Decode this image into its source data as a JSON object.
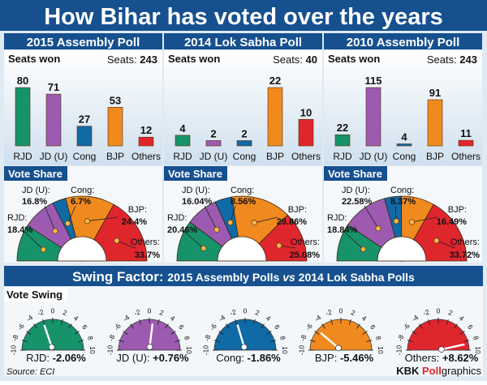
{
  "title": "How Bihar has voted over the years",
  "colors": {
    "navy": "#16508f",
    "RJD": "#17936b",
    "JDU": "#9c5bb1",
    "Cong": "#0f6aa6",
    "BJP": "#f08a1e",
    "Others": "#e0262d"
  },
  "polls": [
    {
      "title": "2015 Assembly Poll",
      "seats_label": "Seats won",
      "seats_total_label": "Seats:",
      "seats_total": "243",
      "vote_share_label": "Vote Share",
      "bars": [
        {
          "party": "RJD",
          "label": "RJD",
          "value": 80
        },
        {
          "party": "JDU",
          "label": "JD (U)",
          "value": 71
        },
        {
          "party": "Cong",
          "label": "Cong",
          "value": 27
        },
        {
          "party": "BJP",
          "label": "BJP",
          "value": 53
        },
        {
          "party": "Others",
          "label": "Others",
          "value": 12
        }
      ],
      "shares": [
        {
          "party": "RJD",
          "label": "RJD:",
          "value": 18.4,
          "text": "18.4%"
        },
        {
          "party": "JDU",
          "label": "JD (U):",
          "value": 16.8,
          "text": "16.8%"
        },
        {
          "party": "Cong",
          "label": "Cong:",
          "value": 6.7,
          "text": "6.7%"
        },
        {
          "party": "BJP",
          "label": "BJP:",
          "value": 24.4,
          "text": "24.4%"
        },
        {
          "party": "Others",
          "label": "Others:",
          "value": 33.7,
          "text": "33.7%"
        }
      ]
    },
    {
      "title": "2014 Lok Sabha Poll",
      "seats_label": "Seats won",
      "seats_total_label": "Seats:",
      "seats_total": "40",
      "vote_share_label": "Vote Share",
      "bars": [
        {
          "party": "RJD",
          "label": "RJD",
          "value": 4
        },
        {
          "party": "JDU",
          "label": "JD (U)",
          "value": 2
        },
        {
          "party": "Cong",
          "label": "Cong",
          "value": 2
        },
        {
          "party": "BJP",
          "label": "BJP",
          "value": 22
        },
        {
          "party": "Others",
          "label": "Others",
          "value": 10
        }
      ],
      "shares": [
        {
          "party": "RJD",
          "label": "RJD:",
          "value": 20.46,
          "text": "20.46%"
        },
        {
          "party": "JDU",
          "label": "JD (U):",
          "value": 16.04,
          "text": "16.04%"
        },
        {
          "party": "Cong",
          "label": "Cong:",
          "value": 8.56,
          "text": "8.56%"
        },
        {
          "party": "BJP",
          "label": "BJP:",
          "value": 29.86,
          "text": "29.86%"
        },
        {
          "party": "Others",
          "label": "Others:",
          "value": 25.08,
          "text": "25.08%"
        }
      ]
    },
    {
      "title": "2010 Assembly Poll",
      "seats_label": "Seats won",
      "seats_total_label": "Seats:",
      "seats_total": "243",
      "vote_share_label": "Vote Share",
      "bars": [
        {
          "party": "RJD",
          "label": "RJD",
          "value": 22
        },
        {
          "party": "JDU",
          "label": "JD (U)",
          "value": 115
        },
        {
          "party": "Cong",
          "label": "Cong",
          "value": 4
        },
        {
          "party": "BJP",
          "label": "BJP",
          "value": 91
        },
        {
          "party": "Others",
          "label": "Others",
          "value": 11
        }
      ],
      "shares": [
        {
          "party": "RJD",
          "label": "RJD:",
          "value": 18.84,
          "text": "18.84%"
        },
        {
          "party": "JDU",
          "label": "JD (U):",
          "value": 22.58,
          "text": "22.58%"
        },
        {
          "party": "Cong",
          "label": "Cong:",
          "value": 8.37,
          "text": "8.37%"
        },
        {
          "party": "BJP",
          "label": "BJP:",
          "value": 16.49,
          "text": "16.49%"
        },
        {
          "party": "Others",
          "label": "Others:",
          "value": 33.72,
          "text": "33.72%"
        }
      ]
    }
  ],
  "swing": {
    "title_bold": "Swing Factor:",
    "title_rest_a": "2015 Assembly Polls",
    "title_vs": "vs",
    "title_rest_b": "2014 Lok Sabha Polls",
    "subtitle": "Vote Swing",
    "ticks": [
      "-10",
      "-8",
      "-6",
      "-4",
      "-2",
      "0",
      "2",
      "4",
      "6",
      "8",
      "10"
    ],
    "gauges": [
      {
        "party": "RJD",
        "label": "RJD:",
        "value": -2.06,
        "text": "-2.06%"
      },
      {
        "party": "JDU",
        "label": "JD (U):",
        "value": 0.76,
        "text": "+0.76%"
      },
      {
        "party": "Cong",
        "label": "Cong:",
        "value": -1.86,
        "text": "-1.86%"
      },
      {
        "party": "BJP",
        "label": "BJP:",
        "value": -5.46,
        "text": "-5.46%"
      },
      {
        "party": "Others",
        "label": "Others:",
        "value": 8.62,
        "text": "+8.62%"
      }
    ]
  },
  "source": "Source: ECI",
  "credit": {
    "a": "KBK ",
    "b": "Poll",
    "c": "graphics"
  }
}
